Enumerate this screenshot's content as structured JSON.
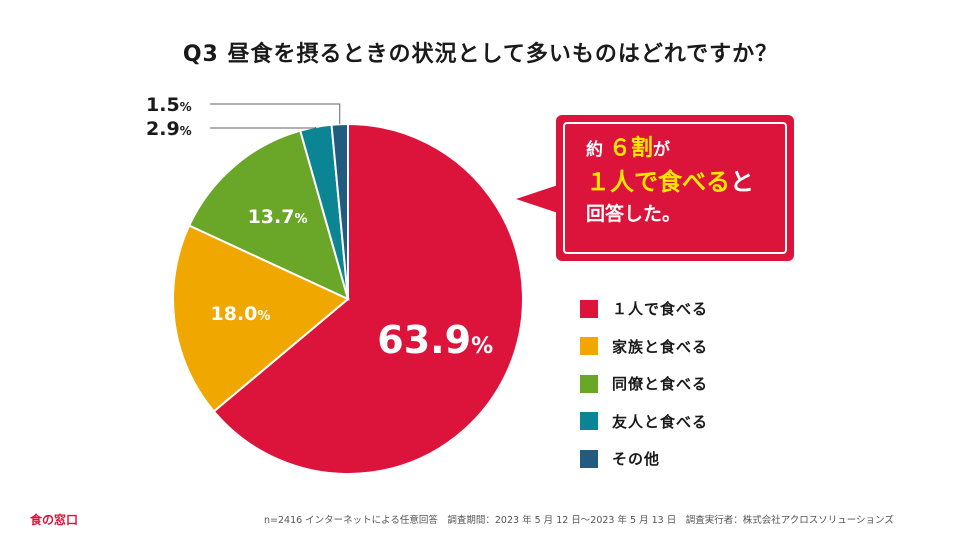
{
  "title": "Q3 昼食を摂るときの状況として多いものはどれですか？",
  "chart_data": {
    "type": "pie",
    "title": "Q3 昼食を摂るときの状況として多いものはどれですか？",
    "unit": "%",
    "slices": [
      {
        "label": "１人で食べる",
        "value": 63.9,
        "value_text": "63.9",
        "color": "#dc143c"
      },
      {
        "label": "家族と食べる",
        "value": 18.0,
        "value_text": "18.0",
        "color": "#f0a800"
      },
      {
        "label": "同僚と食べる",
        "value": 13.7,
        "value_text": "13.7",
        "color": "#6aa628"
      },
      {
        "label": "友人と食べる",
        "value": 2.9,
        "value_text": "2.9",
        "color": "#0b8494"
      },
      {
        "label": "その他",
        "value": 1.5,
        "value_text": "1.5",
        "color": "#215c80"
      }
    ]
  },
  "callout": {
    "line1_pre": "約",
    "line1_num": "６割",
    "line1_post": "が",
    "line2_hl": "１人で食べる",
    "line2_post": "と",
    "line3": "回答した。"
  },
  "footer": {
    "logo": "食の窓口",
    "note": "n=2416 インターネットによる任意回答　調査期間：2023 年 5 月 12 日〜2023 年 5 月 13 日　調査実行者：株式会社アクロスソリューションズ"
  }
}
